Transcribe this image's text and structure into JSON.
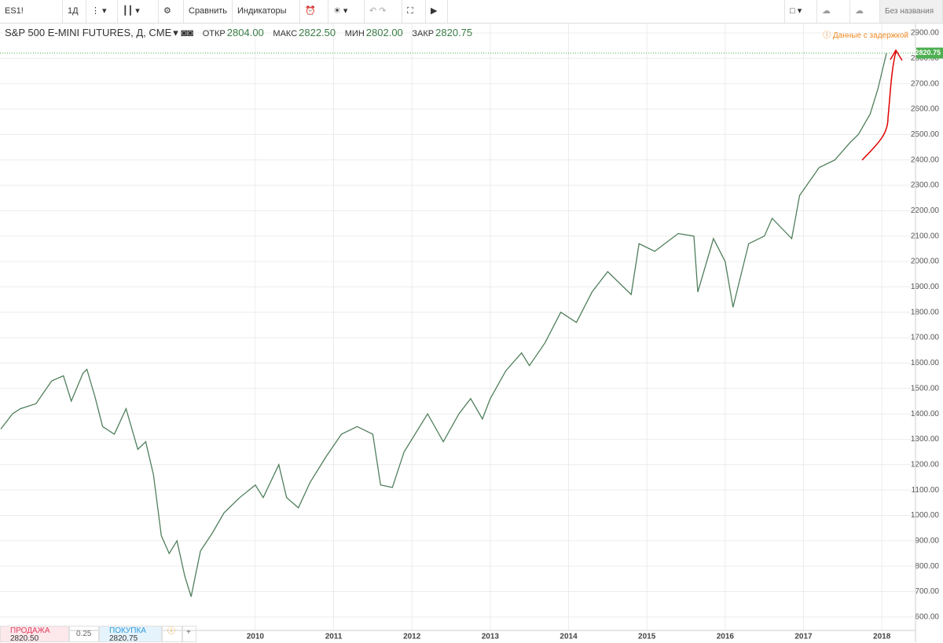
{
  "toolbar": {
    "symbol": "ES1!",
    "interval": "1Д",
    "compare": "Сравнить",
    "indicators": "Индикаторы",
    "layout_name": "Без названия"
  },
  "legend": {
    "title": "S&P 500 E-MINI FUTURES, Д, CME",
    "open_label": "ОТКР",
    "open": "2804.00",
    "high_label": "МАКС",
    "high": "2822.50",
    "low_label": "МИН",
    "low": "2802.00",
    "close_label": "ЗАКР",
    "close": "2820.75",
    "delayed": "Данные с задержкой"
  },
  "chart_data": {
    "type": "line",
    "x": [
      2006.75,
      2006.9,
      2007.0,
      2007.2,
      2007.4,
      2007.55,
      2007.65,
      2007.8,
      2007.85,
      2007.95,
      2008.05,
      2008.2,
      2008.35,
      2008.5,
      2008.6,
      2008.7,
      2008.8,
      2008.9,
      2009.0,
      2009.1,
      2009.18,
      2009.3,
      2009.45,
      2009.6,
      2009.8,
      2010.0,
      2010.1,
      2010.3,
      2010.4,
      2010.55,
      2010.7,
      2010.9,
      2011.1,
      2011.3,
      2011.5,
      2011.6,
      2011.75,
      2011.9,
      2012.2,
      2012.4,
      2012.6,
      2012.75,
      2012.9,
      2013.0,
      2013.2,
      2013.4,
      2013.5,
      2013.7,
      2013.9,
      2014.1,
      2014.3,
      2014.5,
      2014.8,
      2014.9,
      2015.1,
      2015.4,
      2015.6,
      2015.65,
      2015.85,
      2016.0,
      2016.1,
      2016.3,
      2016.5,
      2016.6,
      2016.85,
      2016.95,
      2017.2,
      2017.4,
      2017.6,
      2017.7,
      2017.85,
      2017.95,
      2018.06
    ],
    "series": [
      {
        "color": "#4f7f5c",
        "values": [
          1340,
          1400,
          1420,
          1440,
          1530,
          1550,
          1450,
          1560,
          1575,
          1470,
          1350,
          1320,
          1420,
          1260,
          1290,
          1160,
          920,
          850,
          900,
          760,
          680,
          860,
          930,
          1010,
          1070,
          1120,
          1070,
          1200,
          1070,
          1030,
          1130,
          1230,
          1320,
          1350,
          1320,
          1120,
          1110,
          1250,
          1400,
          1290,
          1400,
          1460,
          1380,
          1460,
          1570,
          1640,
          1590,
          1680,
          1800,
          1760,
          1880,
          1960,
          1870,
          2070,
          2040,
          2110,
          2100,
          1880,
          2090,
          2000,
          1820,
          2070,
          2100,
          2170,
          2090,
          2260,
          2370,
          2400,
          2470,
          2500,
          2580,
          2680,
          2820.75
        ]
      }
    ],
    "xlim": [
      2006.74,
      2018.43
    ],
    "ylim": [
      547,
      2937
    ],
    "xticks": [
      2010,
      2011,
      2012,
      2013,
      2014,
      2015,
      2016,
      2017,
      2018
    ],
    "yticks": [
      {
        "value": 600,
        "label": "600.00"
      },
      {
        "value": 700,
        "label": "700.00"
      },
      {
        "value": 800,
        "label": "800.00"
      },
      {
        "value": 900,
        "label": "900.00"
      },
      {
        "value": 1000,
        "label": "1000.00"
      },
      {
        "value": 1100,
        "label": "1100.00"
      },
      {
        "value": 1200,
        "label": "1200.00"
      },
      {
        "value": 1300,
        "label": "1300.00"
      },
      {
        "value": 1400,
        "label": "1400.00"
      },
      {
        "value": 1500,
        "label": "1500.00"
      },
      {
        "value": 1600,
        "label": "1600.00"
      },
      {
        "value": 1700,
        "label": "1700.00"
      },
      {
        "value": 1800,
        "label": "1800.00"
      },
      {
        "value": 1900,
        "label": "1900.00"
      },
      {
        "value": 2000,
        "label": "2000.00"
      },
      {
        "value": 2100,
        "label": "2100.00"
      },
      {
        "value": 2200,
        "label": "2200.00"
      },
      {
        "value": 2300,
        "label": "2300.00"
      },
      {
        "value": 2400,
        "label": "2400.00"
      },
      {
        "value": 2500,
        "label": "2500.00"
      },
      {
        "value": 2600,
        "label": "2600.00"
      },
      {
        "value": 2700,
        "label": "2700.00"
      },
      {
        "value": 2800,
        "label": "2800.00"
      },
      {
        "value": 2900,
        "label": "2900.00"
      }
    ],
    "grid": true
  },
  "trade_panel": {
    "sell_label": "ПРОДАЖА",
    "sell_price": "2820.50",
    "spread": "0.25",
    "buy_label": "ПОКУПКА",
    "buy_price": "2820.75",
    "add": "+"
  }
}
